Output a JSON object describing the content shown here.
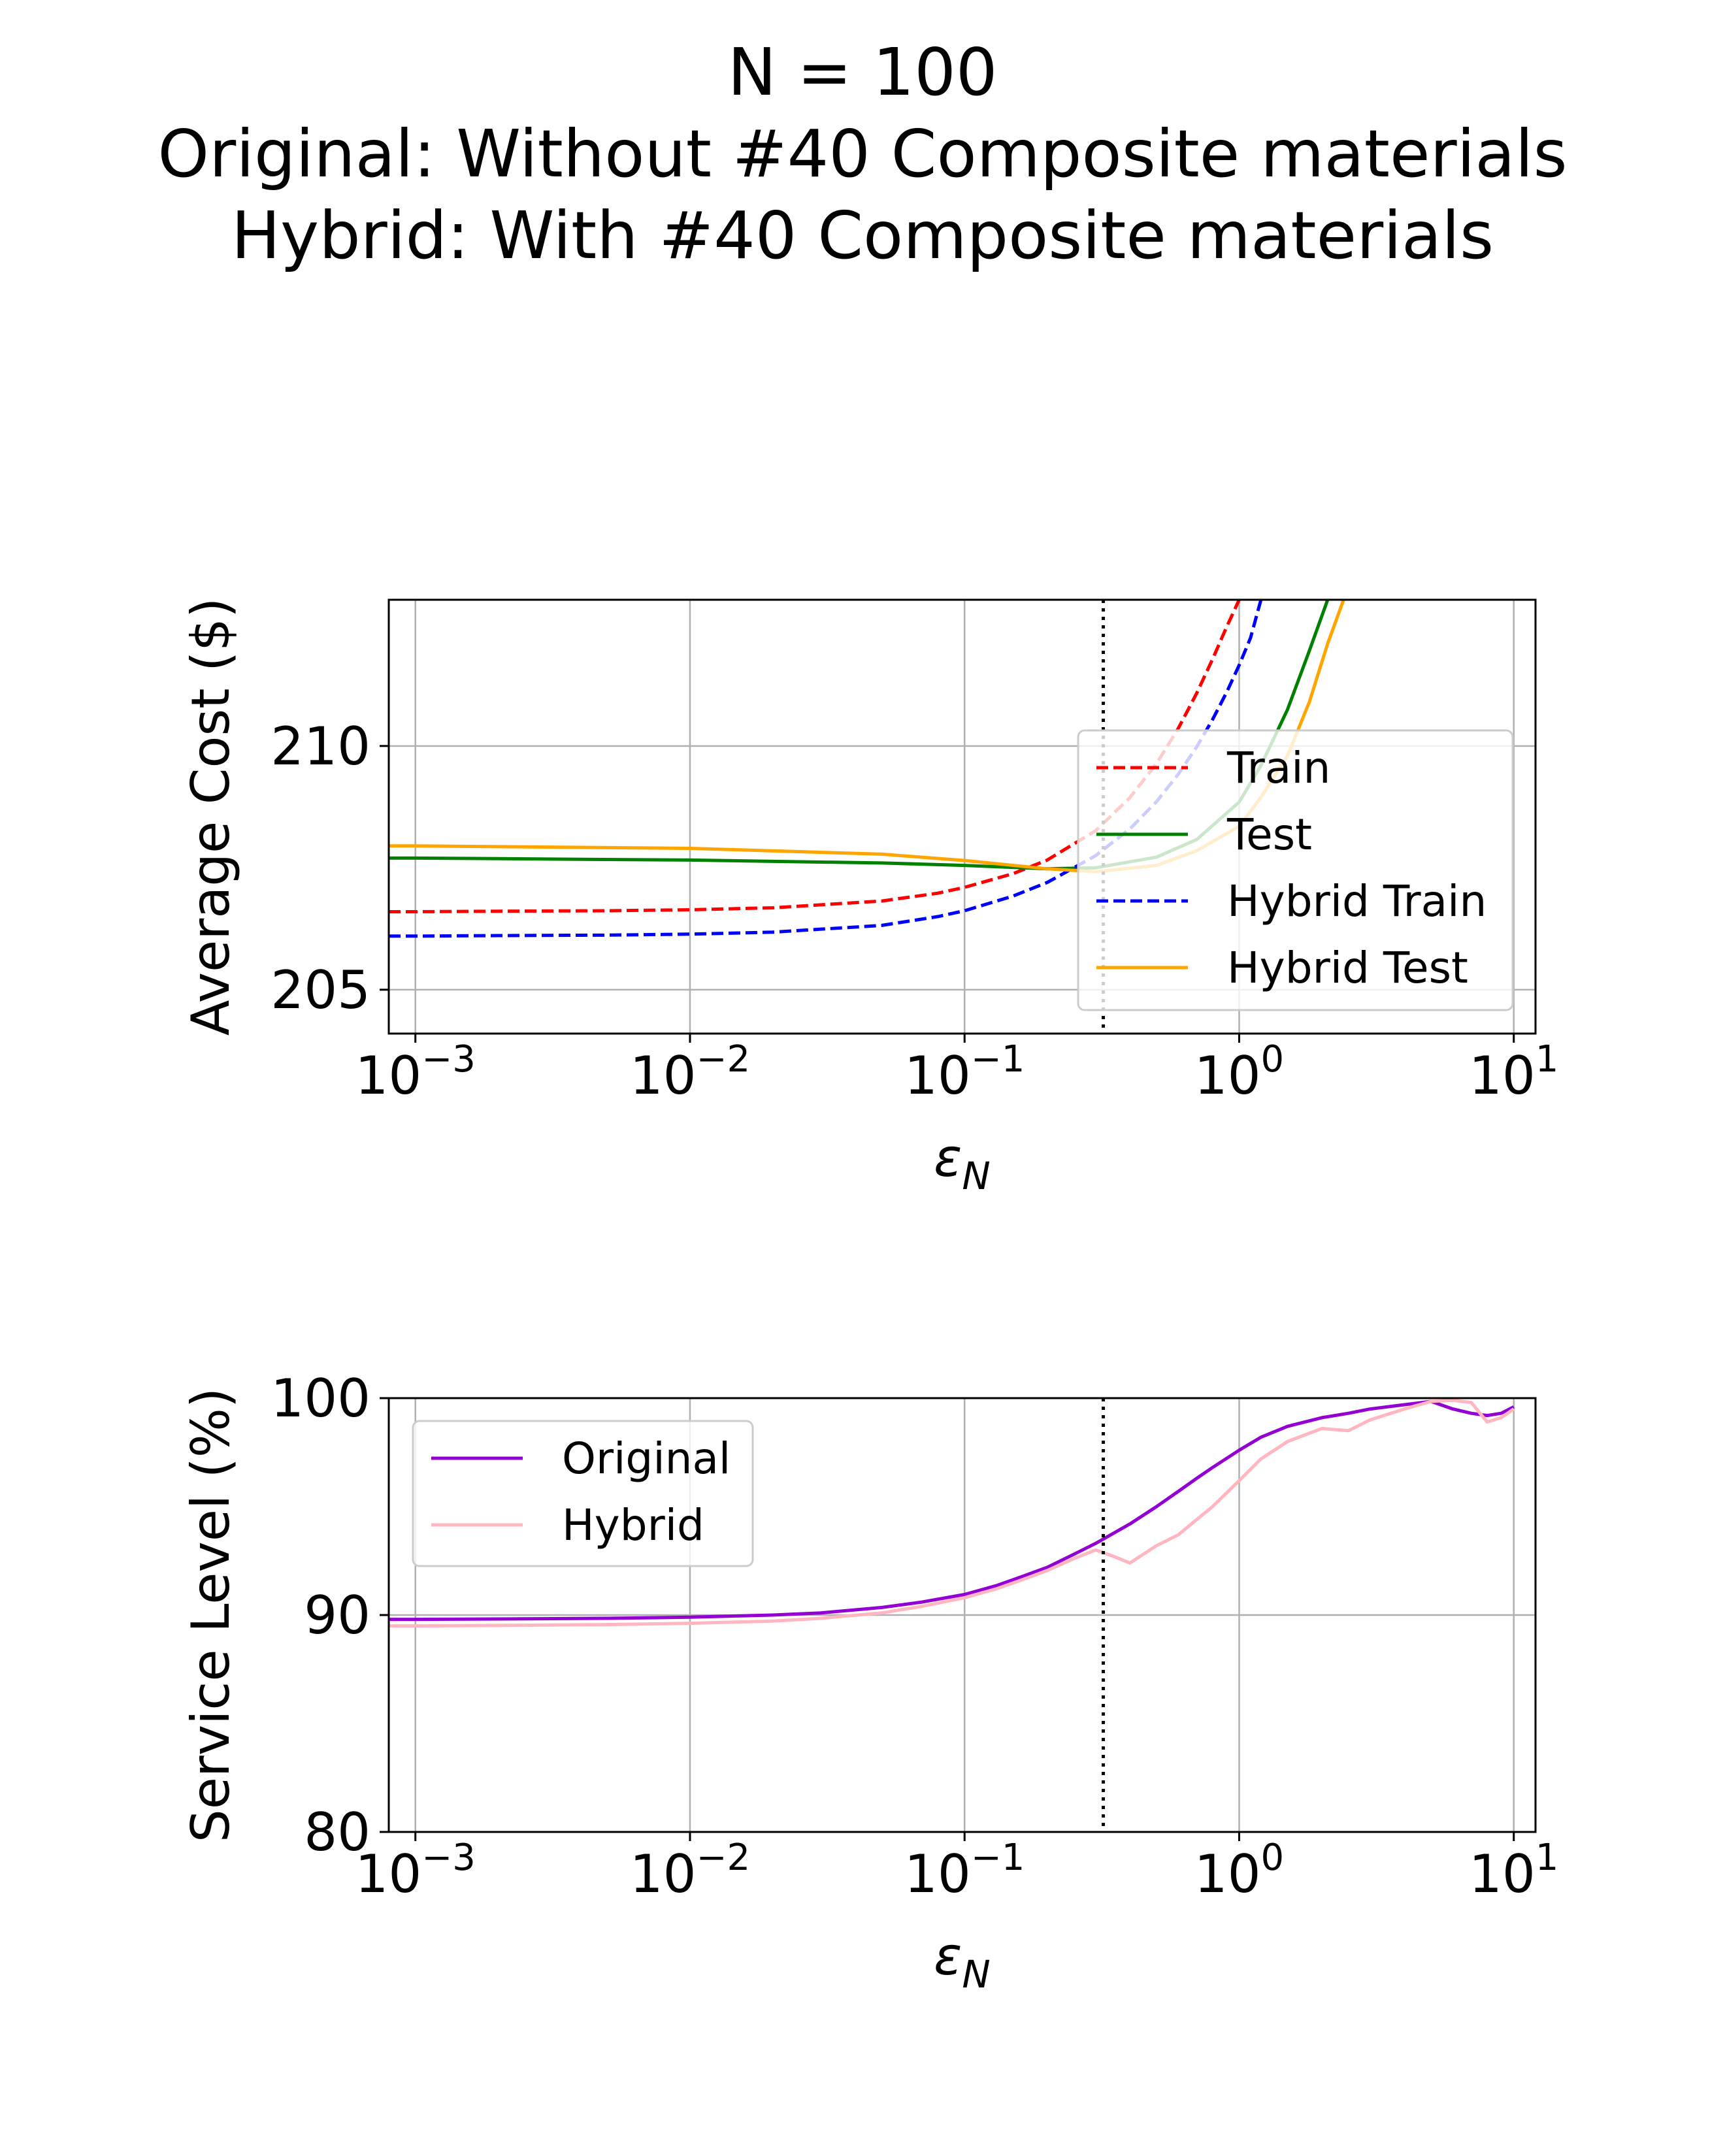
{
  "figure": {
    "title_lines": [
      "N = 100",
      "Original: Without #40 Composite materials",
      "Hybrid: With #40 Composite materials"
    ]
  },
  "chart_data": [
    {
      "type": "line",
      "xscale": "log",
      "xlim": [
        0.0008,
        12
      ],
      "ylim": [
        204.1,
        213.0
      ],
      "xlabel": "ε",
      "xlabel_sub": "N",
      "ylabel": "Average Cost ($)",
      "xticks": [
        {
          "value": 0.001,
          "base": "10",
          "exp": "−3"
        },
        {
          "value": 0.01,
          "base": "10",
          "exp": "−2"
        },
        {
          "value": 0.1,
          "base": "10",
          "exp": "−1"
        },
        {
          "value": 1,
          "base": "10",
          "exp": "0"
        },
        {
          "value": 10,
          "base": "10",
          "exp": "1"
        }
      ],
      "yticks": [
        {
          "value": 205,
          "label": "205"
        },
        {
          "value": 210,
          "label": "210"
        }
      ],
      "grid": true,
      "vline": {
        "x": 0.32,
        "style": "dotted",
        "color": "#000000"
      },
      "legend": {
        "position": "lower-right"
      },
      "series": [
        {
          "name": "Train",
          "color": "#ff0000",
          "dash": "dashed",
          "x": [
            0.0008,
            0.001,
            0.002,
            0.005,
            0.01,
            0.02,
            0.05,
            0.08,
            0.1,
            0.15,
            0.2,
            0.3,
            0.4,
            0.5,
            0.6,
            0.7,
            0.8,
            0.9,
            1.0
          ],
          "y": [
            206.6,
            206.6,
            206.61,
            206.62,
            206.64,
            206.68,
            206.82,
            206.98,
            207.1,
            207.38,
            207.66,
            208.26,
            208.94,
            209.64,
            210.36,
            211.08,
            211.78,
            212.44,
            213.0
          ]
        },
        {
          "name": "Test",
          "color": "#008000",
          "dash": "solid",
          "x": [
            0.0008,
            0.001,
            0.01,
            0.05,
            0.1,
            0.2,
            0.3,
            0.5,
            0.7,
            1.0,
            1.2,
            1.5,
            1.8,
            2.1
          ],
          "y": [
            207.7,
            207.7,
            207.66,
            207.6,
            207.55,
            207.48,
            207.5,
            207.72,
            208.08,
            208.85,
            209.6,
            210.75,
            211.95,
            213.0
          ]
        },
        {
          "name": "Hybrid Train",
          "color": "#0000ff",
          "dash": "dashed",
          "x": [
            0.0008,
            0.001,
            0.002,
            0.005,
            0.01,
            0.02,
            0.05,
            0.08,
            0.1,
            0.15,
            0.2,
            0.3,
            0.4,
            0.5,
            0.6,
            0.7,
            0.8,
            0.9,
            1.0,
            1.1,
            1.2
          ],
          "y": [
            206.1,
            206.1,
            206.11,
            206.12,
            206.14,
            206.18,
            206.32,
            206.5,
            206.62,
            206.92,
            207.2,
            207.75,
            208.3,
            208.86,
            209.42,
            209.98,
            210.54,
            211.1,
            211.66,
            212.22,
            213.0
          ]
        },
        {
          "name": "Hybrid Test",
          "color": "#ffa500",
          "dash": "solid",
          "x": [
            0.0008,
            0.001,
            0.01,
            0.05,
            0.1,
            0.2,
            0.3,
            0.5,
            0.7,
            1.0,
            1.2,
            1.5,
            1.8,
            2.1,
            2.4
          ],
          "y": [
            207.95,
            207.95,
            207.9,
            207.78,
            207.65,
            207.48,
            207.42,
            207.55,
            207.85,
            208.35,
            208.95,
            209.8,
            210.9,
            212.1,
            213.0
          ]
        }
      ]
    },
    {
      "type": "line",
      "xscale": "log",
      "xlim": [
        0.0008,
        12
      ],
      "ylim": [
        80,
        100
      ],
      "xlabel": "ε",
      "xlabel_sub": "N",
      "ylabel": "Service Level (%)",
      "xticks": [
        {
          "value": 0.001,
          "base": "10",
          "exp": "−3"
        },
        {
          "value": 0.01,
          "base": "10",
          "exp": "−2"
        },
        {
          "value": 0.1,
          "base": "10",
          "exp": "−1"
        },
        {
          "value": 1,
          "base": "10",
          "exp": "0"
        },
        {
          "value": 10,
          "base": "10",
          "exp": "1"
        }
      ],
      "yticks": [
        {
          "value": 80,
          "label": "80"
        },
        {
          "value": 90,
          "label": "90"
        },
        {
          "value": 100,
          "label": "100"
        }
      ],
      "grid": true,
      "vline": {
        "x": 0.32,
        "style": "dotted",
        "color": "#000000"
      },
      "legend": {
        "position": "upper-left"
      },
      "series": [
        {
          "name": "Original",
          "color": "#9400d3",
          "dash": "solid",
          "x": [
            0.0008,
            0.001,
            0.002,
            0.005,
            0.01,
            0.02,
            0.03,
            0.05,
            0.07,
            0.1,
            0.13,
            0.16,
            0.2,
            0.25,
            0.3,
            0.4,
            0.5,
            0.6,
            0.7,
            0.8,
            1.0,
            1.2,
            1.5,
            2.0,
            2.5,
            3.0,
            4.0,
            5.0,
            6.0,
            7.0,
            8.0,
            9.0,
            10.0
          ],
          "y": [
            89.8,
            89.8,
            89.82,
            89.85,
            89.9,
            90.0,
            90.1,
            90.35,
            90.6,
            90.95,
            91.35,
            91.75,
            92.2,
            92.8,
            93.3,
            94.2,
            95.0,
            95.7,
            96.3,
            96.8,
            97.6,
            98.2,
            98.7,
            99.1,
            99.3,
            99.5,
            99.7,
            99.85,
            99.5,
            99.3,
            99.2,
            99.3,
            99.6
          ]
        },
        {
          "name": "Hybrid",
          "color": "#ffb6c1",
          "dash": "solid",
          "x": [
            0.0008,
            0.001,
            0.002,
            0.005,
            0.01,
            0.02,
            0.03,
            0.05,
            0.07,
            0.1,
            0.13,
            0.16,
            0.2,
            0.25,
            0.3,
            0.35,
            0.4,
            0.5,
            0.6,
            0.7,
            0.8,
            1.0,
            1.2,
            1.5,
            2.0,
            2.5,
            3.0,
            4.0,
            5.0,
            6.0,
            7.0,
            8.0,
            9.0,
            10.0
          ],
          "y": [
            89.5,
            89.5,
            89.52,
            89.56,
            89.62,
            89.72,
            89.85,
            90.1,
            90.4,
            90.8,
            91.2,
            91.6,
            92.05,
            92.6,
            93.0,
            92.7,
            92.4,
            93.2,
            93.7,
            94.4,
            95.0,
            96.2,
            97.2,
            98.0,
            98.6,
            98.5,
            99.0,
            99.5,
            99.85,
            99.9,
            99.8,
            98.9,
            99.1,
            99.5
          ]
        }
      ]
    }
  ]
}
